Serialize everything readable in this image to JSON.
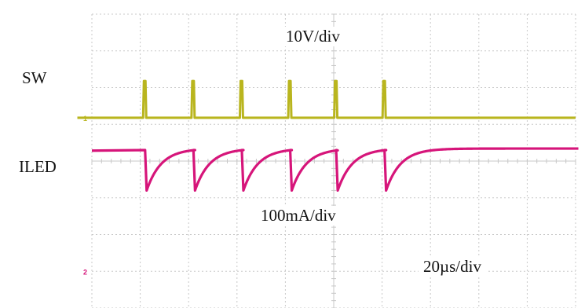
{
  "chart_data": {
    "type": "line",
    "title": "",
    "xlabel": "",
    "ylabel": "",
    "grid": true,
    "grid_divisions": {
      "x": 10,
      "y": 8
    },
    "x_unit": "µs",
    "x": [
      0,
      20,
      40,
      60,
      80,
      100,
      120,
      140,
      160,
      180,
      200
    ],
    "series": [
      {
        "name": "SW",
        "channel_marker": "1",
        "color": "#b9b51e",
        "baseline_div": 5.18,
        "pulse_height_div": 1.0,
        "switching_times_us": [
          22,
          42,
          62,
          82,
          101,
          121
        ]
      },
      {
        "name": "ILED",
        "channel_marker": "2",
        "color": "#d6157a",
        "peak_div": 4.3,
        "valley_div": 3.2,
        "switching_times_us": [
          22,
          42,
          62,
          82,
          101,
          121
        ]
      }
    ],
    "annotations": {
      "sw_scale": "10V/div",
      "iled_scale": "100mA/div",
      "time_scale": "20µs/div"
    }
  },
  "labels": {
    "sw": "SW",
    "iled": "ILED",
    "ch1_marker": "1",
    "ch2_marker": "2"
  },
  "colors": {
    "grid": "#c8c8c8",
    "sw": "#b9b51e",
    "iled": "#d6157a"
  }
}
